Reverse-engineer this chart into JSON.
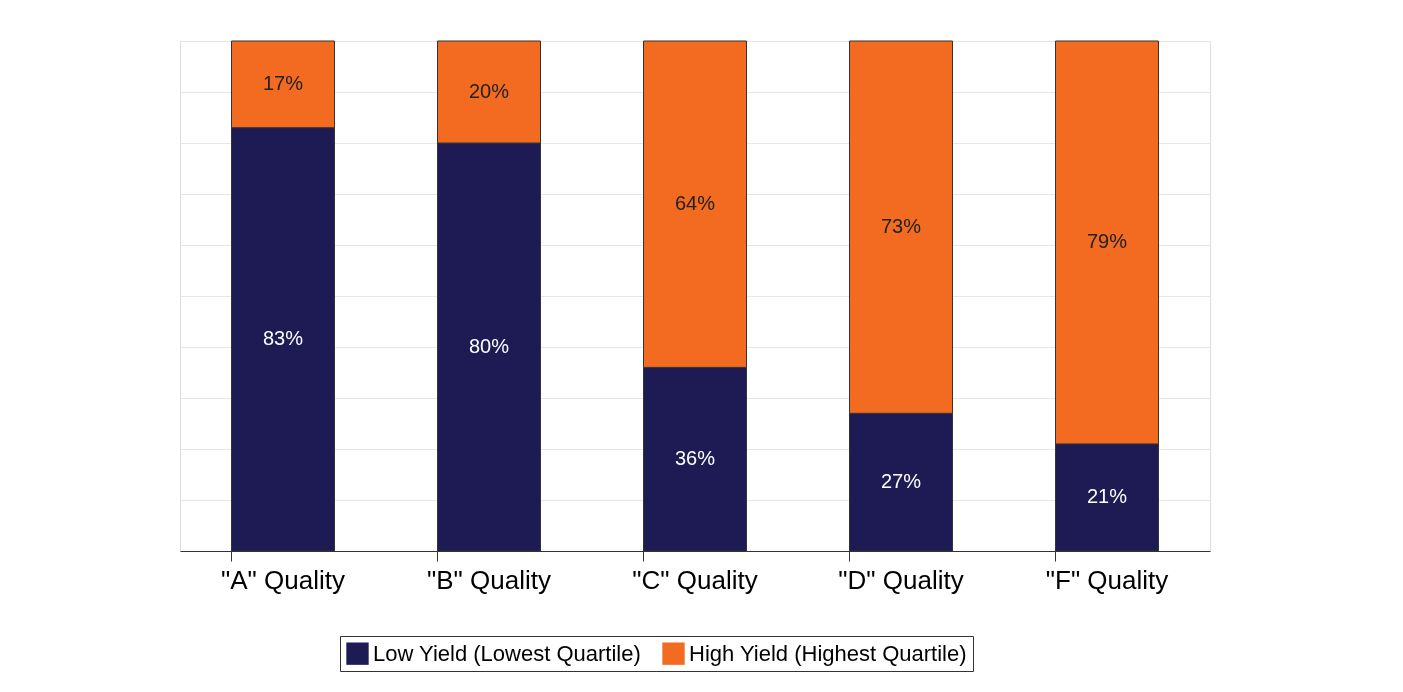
{
  "chart_data": {
    "type": "bar",
    "stacked": true,
    "categories": [
      "\"A\" Quality",
      "\"B\" Quality",
      "\"C\" Quality",
      "\"D\" Quality",
      "\"F\" Quality"
    ],
    "series": [
      {
        "name": "Low Yield (Lowest Quartile)",
        "color": "#1e1b54",
        "values": [
          83,
          80,
          36,
          27,
          21
        ],
        "value_labels": [
          "83%",
          "80%",
          "36%",
          "27%",
          "21%"
        ]
      },
      {
        "name": "High Yield (Highest Quartile)",
        "color": "#f26b21",
        "values": [
          17,
          20,
          64,
          73,
          79
        ],
        "value_labels": [
          "17%",
          "20%",
          "64%",
          "73%",
          "79%"
        ]
      }
    ],
    "tick_labels": "x",
    "grid": true,
    "legend": "bottom"
  }
}
